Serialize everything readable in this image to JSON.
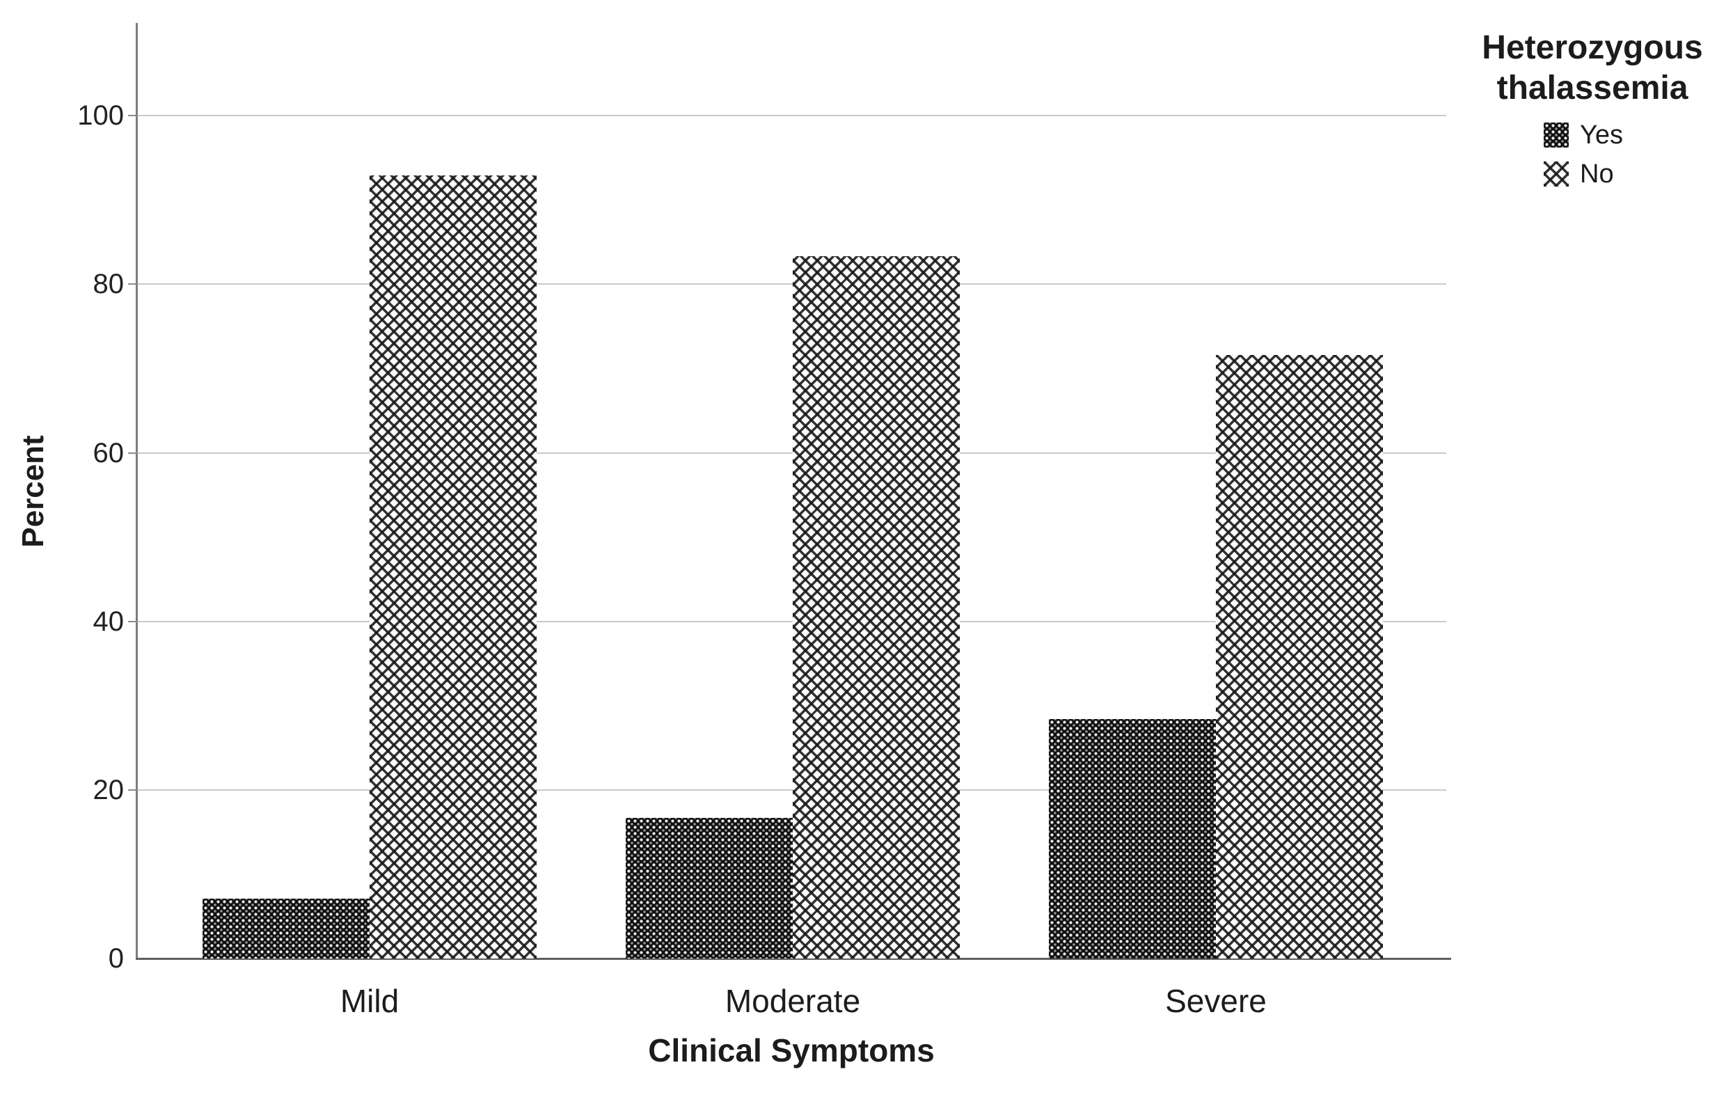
{
  "chart_data": {
    "type": "bar",
    "title": "",
    "categories": [
      "Mild",
      "Moderate",
      "Severe"
    ],
    "series": [
      {
        "name": "Yes",
        "values": [
          7.1,
          16.7,
          28.4
        ]
      },
      {
        "name": "No",
        "values": [
          92.9,
          83.3,
          71.6
        ]
      }
    ],
    "xlabel": "Clinical Symptoms",
    "ylabel": "Percent",
    "yticks": [
      0,
      20,
      40,
      60,
      80,
      100
    ],
    "ylim": [
      0,
      111
    ],
    "grid": true,
    "legend": {
      "title": "Heterozygous thalassemia",
      "entries": [
        "Yes",
        "No"
      ],
      "position": "top-right"
    }
  },
  "colors": {
    "bar_yes": "#101010",
    "bar_no_hatch": "#161616",
    "axis": "#7d7d7d",
    "gridline": "#cacaca",
    "text": "#1c1c1c"
  }
}
